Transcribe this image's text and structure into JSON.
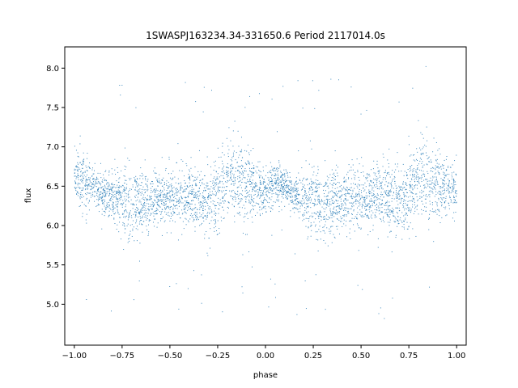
{
  "chart_data": {
    "type": "scatter",
    "title": "1SWASPJ163234.34-331650.6 Period 2117014.0s",
    "xlabel": "phase",
    "ylabel": "flux",
    "xlim": [
      -1.05,
      1.05
    ],
    "ylim": [
      4.48,
      8.27
    ],
    "grid": false,
    "legend": "none",
    "x_ticks": [
      -1.0,
      -0.75,
      -0.5,
      -0.25,
      0.0,
      0.25,
      0.5,
      0.75,
      1.0
    ],
    "x_tick_labels": [
      "−1.00",
      "−0.75",
      "−0.50",
      "−0.25",
      "0.00",
      "0.25",
      "0.50",
      "0.75",
      "1.00"
    ],
    "y_ticks": [
      5.0,
      5.5,
      6.0,
      6.5,
      7.0,
      7.5,
      8.0
    ],
    "y_tick_labels": [
      "5.0",
      "5.5",
      "6.0",
      "6.5",
      "7.0",
      "7.5",
      "8.0"
    ],
    "marker_color": "#1f77b4",
    "series": [
      {
        "x": [
          -1.0,
          -0.95,
          -0.9,
          -0.85,
          -0.8,
          -0.75,
          -0.7,
          -0.65,
          -0.6,
          -0.55,
          -0.5,
          -0.45,
          -0.4,
          -0.35,
          -0.3,
          -0.25,
          -0.2,
          -0.15,
          -0.1,
          -0.05,
          0.0,
          0.05,
          0.1,
          0.15,
          0.2,
          0.25,
          0.3,
          0.35,
          0.4,
          0.45,
          0.5,
          0.55,
          0.6,
          0.65,
          0.7,
          0.75,
          0.8,
          0.85,
          0.9,
          0.95,
          1.0
        ],
        "y": [
          6.65,
          6.55,
          6.5,
          6.4,
          6.35,
          6.3,
          6.25,
          6.3,
          6.3,
          6.35,
          6.35,
          6.35,
          6.4,
          6.35,
          6.3,
          6.4,
          6.6,
          6.6,
          6.5,
          6.5,
          6.45,
          6.55,
          6.5,
          6.4,
          6.35,
          6.3,
          6.25,
          6.3,
          6.3,
          6.35,
          6.35,
          6.35,
          6.4,
          6.35,
          6.3,
          6.4,
          6.6,
          6.6,
          6.5,
          6.5,
          6.45
        ],
        "spread": [
          0.3,
          0.4,
          0.2,
          0.25,
          0.3,
          0.4,
          0.4,
          0.4,
          0.3,
          0.35,
          0.35,
          0.3,
          0.35,
          0.4,
          0.4,
          0.45,
          0.45,
          0.45,
          0.4,
          0.3,
          0.3,
          0.25,
          0.2,
          0.2,
          0.3,
          0.4,
          0.4,
          0.4,
          0.3,
          0.35,
          0.35,
          0.3,
          0.35,
          0.4,
          0.4,
          0.45,
          0.45,
          0.45,
          0.4,
          0.3,
          0.3
        ]
      }
    ]
  }
}
